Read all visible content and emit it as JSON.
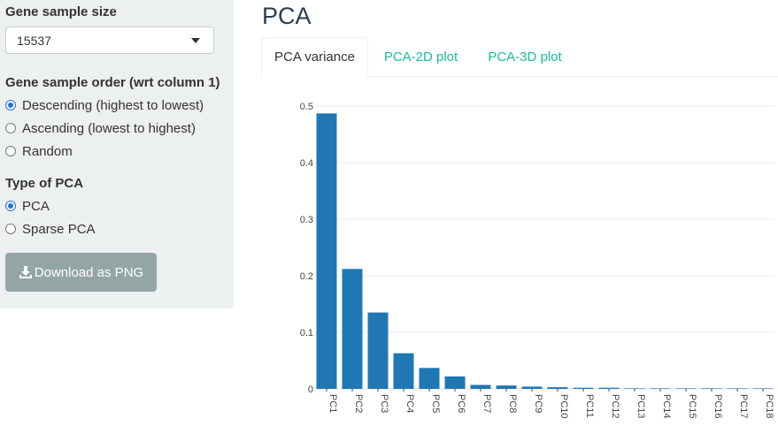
{
  "sidebar": {
    "gene_sample_size": {
      "label": "Gene sample size",
      "value": "15537"
    },
    "gene_sample_order": {
      "label": "Gene sample order (wrt column 1)",
      "options": [
        {
          "label": "Descending (highest to lowest)",
          "checked": true
        },
        {
          "label": "Ascending (lowest to highest)",
          "checked": false
        },
        {
          "label": "Random",
          "checked": false
        }
      ]
    },
    "type_of_pca": {
      "label": "Type of PCA",
      "options": [
        {
          "label": "PCA",
          "checked": true
        },
        {
          "label": "Sparse PCA",
          "checked": false
        }
      ]
    },
    "download_button": {
      "label": "Download as PNG",
      "icon": "download-icon"
    }
  },
  "main": {
    "title": "PCA",
    "tabs": [
      {
        "label": "PCA variance",
        "active": true
      },
      {
        "label": "PCA-2D plot",
        "active": false
      },
      {
        "label": "PCA-3D plot",
        "active": false
      }
    ]
  },
  "colors": {
    "sidebar_bg": "#ecf0f1",
    "bar": "#1f77b4",
    "tab_link": "#18bc9c",
    "button_bg": "#95a5a6",
    "title": "#2c3e50"
  },
  "chart_data": {
    "type": "bar",
    "title": "",
    "xlabel": "",
    "ylabel": "",
    "categories": [
      "PC1",
      "PC2",
      "PC3",
      "PC4",
      "PC5",
      "PC6",
      "PC7",
      "PC8",
      "PC9",
      "PC10",
      "PC11",
      "PC12",
      "PC13",
      "PC14",
      "PC15",
      "PC16",
      "PC17",
      "PC18"
    ],
    "values": [
      0.487,
      0.212,
      0.135,
      0.063,
      0.037,
      0.022,
      0.007,
      0.006,
      0.004,
      0.003,
      0.002,
      0.002,
      0.001,
      0.001,
      0.001,
      0.001,
      0.0005,
      0.0005
    ],
    "yticks": [
      "0",
      "0.1",
      "0.2",
      "0.3",
      "0.4",
      "0.5"
    ],
    "ylim": [
      0,
      0.5
    ],
    "grid": true,
    "legend": "none"
  }
}
